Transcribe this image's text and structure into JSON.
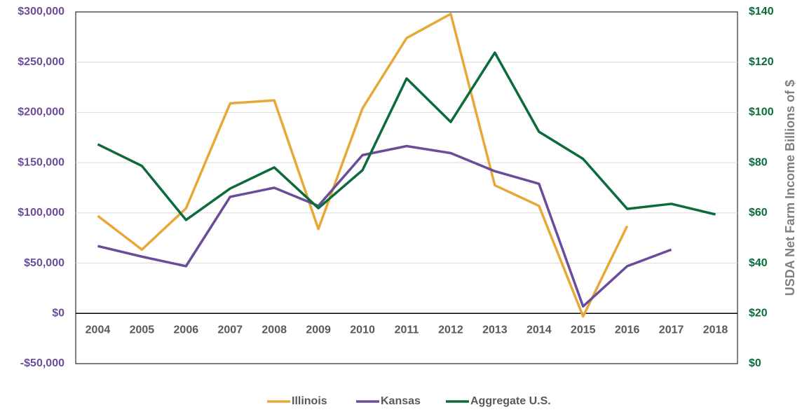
{
  "chart_data": {
    "type": "line",
    "categories": [
      "2004",
      "2005",
      "2006",
      "2007",
      "2008",
      "2009",
      "2010",
      "2011",
      "2012",
      "2013",
      "2014",
      "2015",
      "2016",
      "2017",
      "2018"
    ],
    "series": [
      {
        "name": "Illinois",
        "color": "#e8a838",
        "values": [
          97000,
          63500,
          104500,
          209000,
          212000,
          84000,
          204000,
          274000,
          298000,
          127500,
          107000,
          -3000,
          87000,
          null,
          null
        ]
      },
      {
        "name": "Kansas",
        "color": "#6b4c9a",
        "values": [
          67000,
          56500,
          47000,
          116000,
          125000,
          107000,
          157500,
          166500,
          159500,
          141500,
          129000,
          7000,
          47000,
          63500,
          null
        ]
      },
      {
        "name": "Aggregate U.S.",
        "color": "#0b6b3a",
        "axis": "y2",
        "values": [
          87.3,
          78.7,
          57.2,
          69.7,
          78.1,
          61.9,
          77.0,
          113.5,
          96.2,
          123.8,
          92.3,
          81.5,
          61.6,
          63.6,
          59.4
        ]
      }
    ],
    "ylim": [
      -50000,
      300000
    ],
    "yticks": [
      {
        "value": -50000,
        "label": "-$50,000"
      },
      {
        "value": 0,
        "label": "$0"
      },
      {
        "value": 50000,
        "label": "$50,000"
      },
      {
        "value": 100000,
        "label": "$100,000"
      },
      {
        "value": 150000,
        "label": "$150,000"
      },
      {
        "value": 200000,
        "label": "$200,000"
      },
      {
        "value": 250000,
        "label": "$250,000"
      },
      {
        "value": 300000,
        "label": "$300,000"
      }
    ],
    "y2lim": [
      0,
      140
    ],
    "y2ticks": [
      {
        "value": 0,
        "label": "$0"
      },
      {
        "value": 20,
        "label": "$20"
      },
      {
        "value": 40,
        "label": "$40"
      },
      {
        "value": 60,
        "label": "$60"
      },
      {
        "value": 80,
        "label": "$80"
      },
      {
        "value": 100,
        "label": "$100"
      },
      {
        "value": 120,
        "label": "$120"
      },
      {
        "value": 140,
        "label": "$140"
      }
    ],
    "y2label": "USDA Net Farm Income Billions of $",
    "grid": true,
    "legend": "bottom"
  }
}
